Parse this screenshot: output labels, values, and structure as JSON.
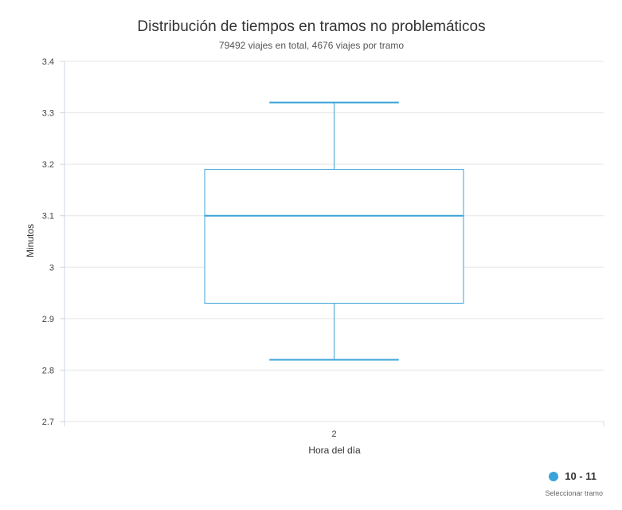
{
  "chart_data": {
    "type": "boxplot",
    "title": "Distribución de tiempos en tramos no problemáticos",
    "subtitle": "79492 viajes en total, 4676 viajes por tramo",
    "xlabel": "Hora del día",
    "ylabel": "Minutos",
    "categories": [
      "2"
    ],
    "series": [
      {
        "name": "10 - 11",
        "low": 2.82,
        "q1": 2.93,
        "median": 3.1,
        "q3": 3.19,
        "high": 3.32
      }
    ],
    "ylim": [
      2.7,
      3.4
    ],
    "yticks": [
      "2.7",
      "2.8",
      "2.9",
      "3",
      "3.1",
      "3.2",
      "3.3",
      "3.4"
    ],
    "grid": true,
    "legend_position": "bottom-right",
    "color": "#3ba3d8"
  },
  "legend": {
    "label": "10 - 11",
    "caption": "Seleccionar tramo",
    "color": "#3ba3d8"
  }
}
